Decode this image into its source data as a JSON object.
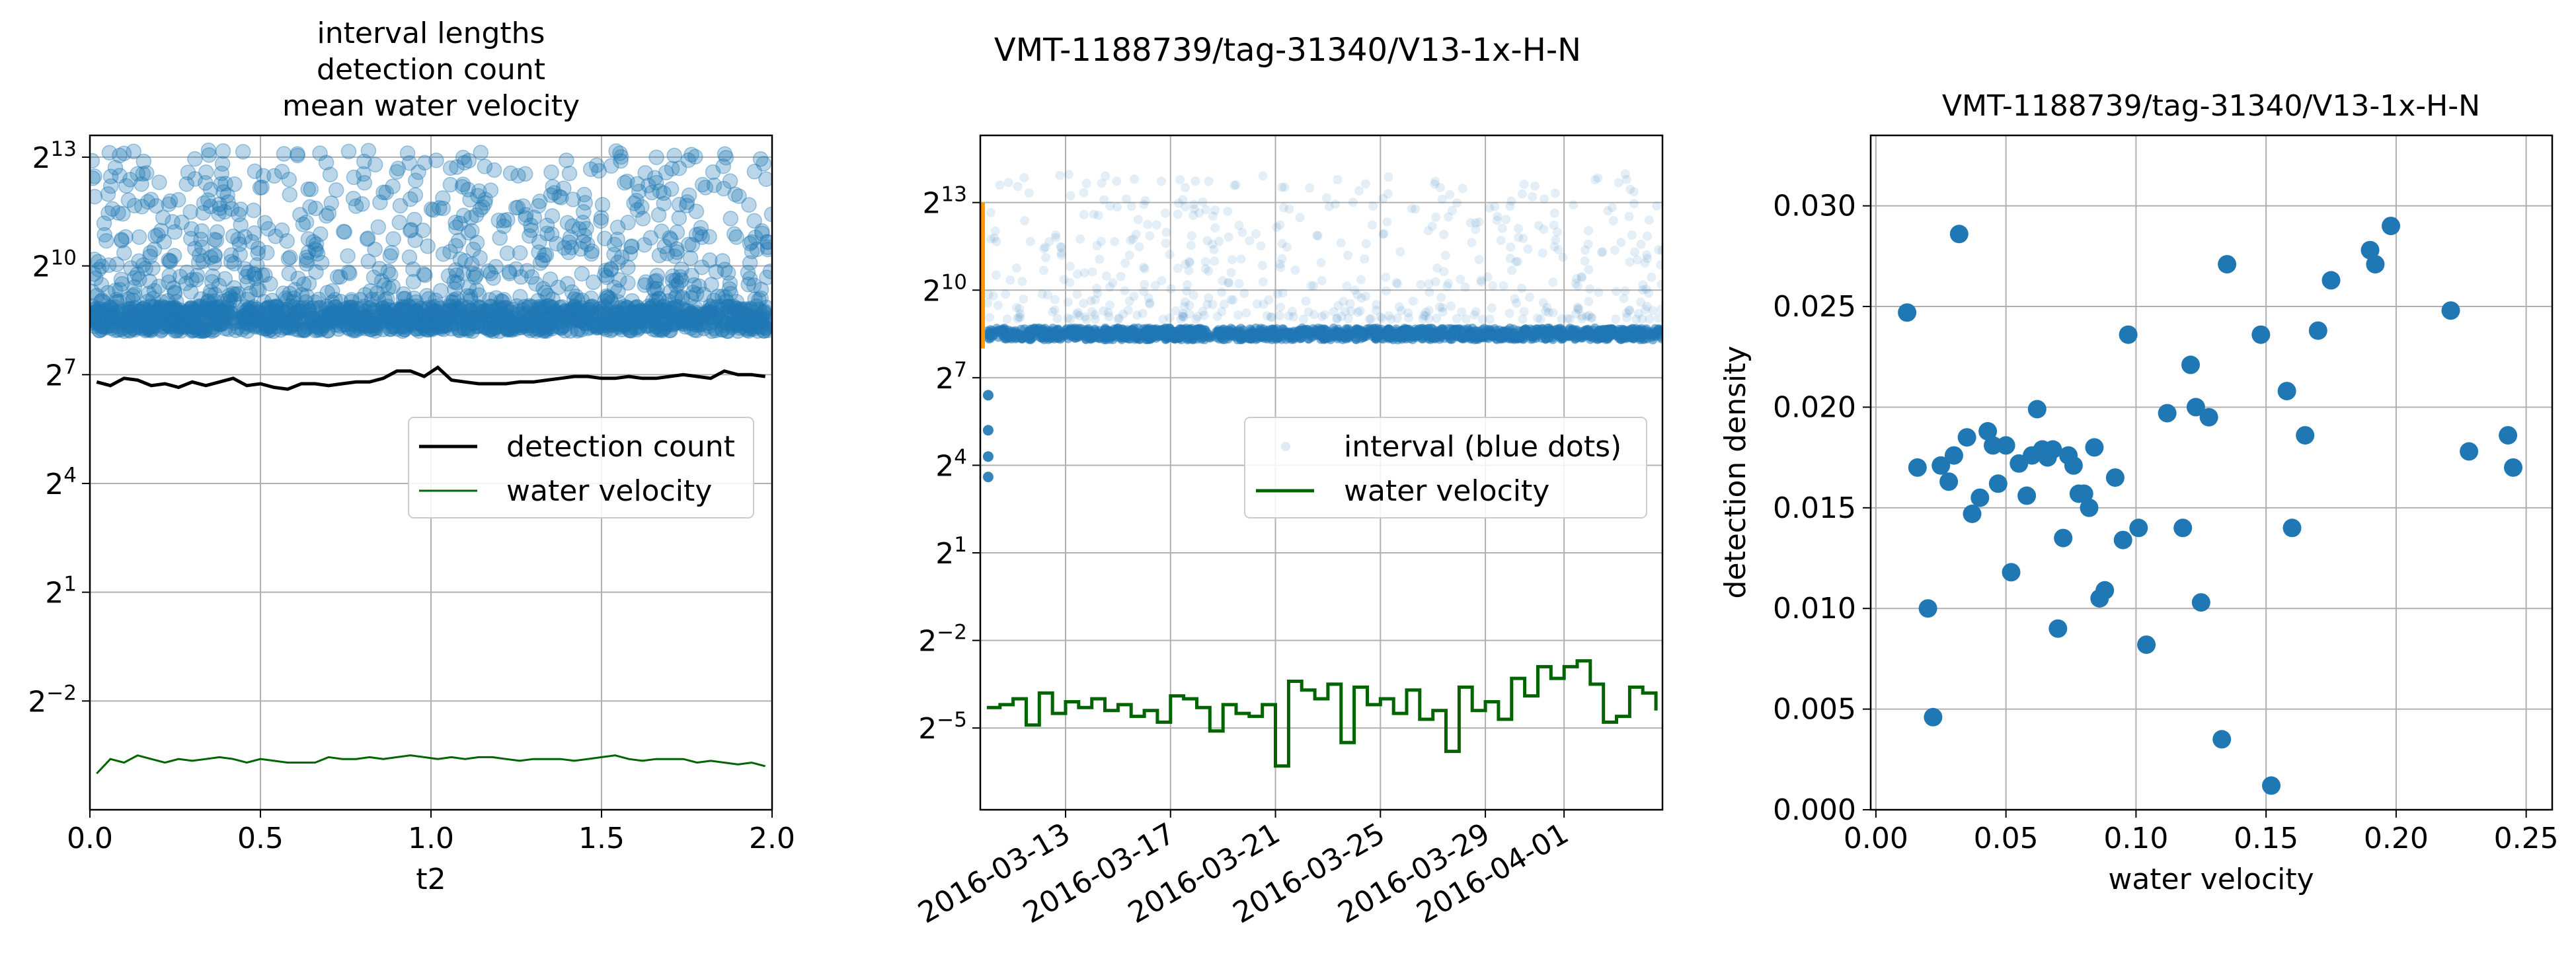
{
  "figure": {
    "suptitle": "VMT-1188739/tag-31340/V13-1x-H-N"
  },
  "chart_data": [
    {
      "type": "line",
      "title_lines": [
        "interval lengths",
        "detection count",
        "mean water velocity"
      ],
      "xlabel": "t2",
      "ylabel": "",
      "x_ticks": [
        "0.0",
        "0.5",
        "1.0",
        "1.5",
        "2.0"
      ],
      "x_tick_values": [
        0,
        0.5,
        1.0,
        1.5,
        2.0
      ],
      "y_scale": "log2",
      "y_ticks": [
        {
          "base": "2",
          "exp": "−2",
          "value": -2
        },
        {
          "base": "2",
          "exp": "1",
          "value": 1
        },
        {
          "base": "2",
          "exp": "4",
          "value": 4
        },
        {
          "base": "2",
          "exp": "7",
          "value": 7
        },
        {
          "base": "2",
          "exp": "10",
          "value": 10
        },
        {
          "base": "2",
          "exp": "13",
          "value": 13
        }
      ],
      "xlim": [
        0,
        2
      ],
      "ylim_log2": [
        -5.0,
        13.6
      ],
      "grid": true,
      "legend": {
        "position": "center-right",
        "entries": [
          "detection count",
          "water velocity"
        ]
      },
      "series": [
        {
          "name": "detection count",
          "color": "#000000",
          "x": [
            0.02,
            0.06,
            0.1,
            0.14,
            0.18,
            0.22,
            0.26,
            0.3,
            0.34,
            0.38,
            0.42,
            0.46,
            0.5,
            0.54,
            0.58,
            0.62,
            0.66,
            0.7,
            0.74,
            0.78,
            0.82,
            0.86,
            0.9,
            0.94,
            0.98,
            1.02,
            1.06,
            1.1,
            1.14,
            1.18,
            1.22,
            1.26,
            1.3,
            1.34,
            1.38,
            1.42,
            1.46,
            1.5,
            1.54,
            1.58,
            1.62,
            1.66,
            1.7,
            1.74,
            1.78,
            1.82,
            1.86,
            1.9,
            1.94,
            1.98
          ],
          "log2_y": [
            6.8,
            6.7,
            6.9,
            6.85,
            6.7,
            6.75,
            6.65,
            6.8,
            6.7,
            6.8,
            6.9,
            6.7,
            6.75,
            6.65,
            6.6,
            6.75,
            6.75,
            6.7,
            6.75,
            6.8,
            6.8,
            6.9,
            7.1,
            7.1,
            6.95,
            7.2,
            6.85,
            6.8,
            6.75,
            6.75,
            6.75,
            6.8,
            6.8,
            6.85,
            6.9,
            6.95,
            6.95,
            6.9,
            6.9,
            6.95,
            6.9,
            6.9,
            6.95,
            7.0,
            6.95,
            6.9,
            7.1,
            7.0,
            7.0,
            6.95
          ]
        },
        {
          "name": "water velocity",
          "color": "#006400",
          "x": [
            0.02,
            0.06,
            0.1,
            0.14,
            0.18,
            0.22,
            0.26,
            0.3,
            0.34,
            0.38,
            0.42,
            0.46,
            0.5,
            0.54,
            0.58,
            0.62,
            0.66,
            0.7,
            0.74,
            0.78,
            0.82,
            0.86,
            0.9,
            0.94,
            0.98,
            1.02,
            1.06,
            1.1,
            1.14,
            1.18,
            1.22,
            1.26,
            1.3,
            1.34,
            1.38,
            1.42,
            1.46,
            1.5,
            1.54,
            1.58,
            1.62,
            1.66,
            1.7,
            1.74,
            1.78,
            1.82,
            1.86,
            1.9,
            1.94,
            1.98
          ],
          "log2_y": [
            -4.0,
            -3.6,
            -3.7,
            -3.5,
            -3.6,
            -3.7,
            -3.6,
            -3.65,
            -3.6,
            -3.55,
            -3.6,
            -3.7,
            -3.6,
            -3.65,
            -3.7,
            -3.7,
            -3.7,
            -3.55,
            -3.6,
            -3.6,
            -3.55,
            -3.6,
            -3.55,
            -3.5,
            -3.55,
            -3.6,
            -3.55,
            -3.6,
            -3.55,
            -3.55,
            -3.6,
            -3.65,
            -3.6,
            -3.6,
            -3.6,
            -3.65,
            -3.6,
            -3.55,
            -3.5,
            -3.6,
            -3.65,
            -3.6,
            -3.6,
            -3.6,
            -3.7,
            -3.65,
            -3.7,
            -3.75,
            -3.7,
            -3.8
          ]
        }
      ],
      "scatter_note": "interval length points (blue, translucent)",
      "scatter_color": "#1f77b4",
      "scatter_bands_log2": [
        {
          "from": 8.2,
          "to": 8.9,
          "density": "dense"
        },
        {
          "from": 9.0,
          "to": 13.2,
          "density": "sparse"
        }
      ]
    },
    {
      "type": "line",
      "title": "",
      "xlabel": "",
      "ylabel": "",
      "x_ticks": [
        "2016-03-13",
        "2016-03-17",
        "2016-03-21",
        "2016-03-25",
        "2016-03-29",
        "2016-04-01"
      ],
      "x_tick_values": [
        "2016-03-13",
        "2016-03-17",
        "2016-03-21",
        "2016-03-25",
        "2016-03-29",
        "2016-04-01"
      ],
      "xlim": [
        "2016-03-09 18:00",
        "2016-04-04 18:00"
      ],
      "y_scale": "log2",
      "y_ticks": [
        {
          "base": "2",
          "exp": "−5",
          "value": -5
        },
        {
          "base": "2",
          "exp": "−2",
          "value": -2
        },
        {
          "base": "2",
          "exp": "1",
          "value": 1
        },
        {
          "base": "2",
          "exp": "4",
          "value": 4
        },
        {
          "base": "2",
          "exp": "7",
          "value": 7
        },
        {
          "base": "2",
          "exp": "10",
          "value": 10
        },
        {
          "base": "2",
          "exp": "13",
          "value": 13
        }
      ],
      "ylim_log2": [
        -7.8,
        15.3
      ],
      "grid": true,
      "legend": {
        "position": "center-right",
        "entries": [
          "interval (blue dots)",
          "water velocity"
        ]
      },
      "marker_segment": {
        "color": "#ff9900",
        "log2_from": 8.0,
        "log2_to": 13.0
      },
      "series": [
        {
          "name": "interval (blue dots)",
          "color": "#1f77b4",
          "dense_band_log2": [
            8.3,
            8.7
          ],
          "sparse_range_log2": [
            9.0,
            14.0
          ]
        },
        {
          "name": "water velocity",
          "color": "#006400",
          "x": [
            "2016-03-10",
            "2016-03-10 12:00",
            "2016-03-11",
            "2016-03-11 12:00",
            "2016-03-12",
            "2016-03-12 12:00",
            "2016-03-13",
            "2016-03-13 12:00",
            "2016-03-14",
            "2016-03-14 12:00",
            "2016-03-15",
            "2016-03-15 12:00",
            "2016-03-16",
            "2016-03-16 12:00",
            "2016-03-17",
            "2016-03-17 12:00",
            "2016-03-18",
            "2016-03-18 12:00",
            "2016-03-19",
            "2016-03-19 12:00",
            "2016-03-20",
            "2016-03-20 12:00",
            "2016-03-21",
            "2016-03-21 12:00",
            "2016-03-22",
            "2016-03-22 12:00",
            "2016-03-23",
            "2016-03-23 12:00",
            "2016-03-24",
            "2016-03-24 12:00",
            "2016-03-25",
            "2016-03-25 12:00",
            "2016-03-26",
            "2016-03-26 12:00",
            "2016-03-27",
            "2016-03-27 12:00",
            "2016-03-28",
            "2016-03-28 12:00",
            "2016-03-29",
            "2016-03-29 12:00",
            "2016-03-30",
            "2016-03-30 12:00",
            "2016-03-31",
            "2016-03-31 12:00",
            "2016-04-01",
            "2016-04-01 12:00",
            "2016-04-02",
            "2016-04-02 12:00",
            "2016-04-03",
            "2016-04-03 12:00",
            "2016-04-04",
            "2016-04-04 12:00"
          ],
          "log2_y": [
            -4.3,
            -4.2,
            -4.0,
            -4.9,
            -3.8,
            -4.5,
            -4.1,
            -4.3,
            -4.0,
            -4.4,
            -4.2,
            -4.6,
            -4.4,
            -4.8,
            -3.9,
            -4.0,
            -4.3,
            -5.1,
            -4.2,
            -4.5,
            -4.6,
            -4.2,
            -6.3,
            -3.4,
            -3.7,
            -4.0,
            -3.5,
            -5.5,
            -3.6,
            -4.2,
            -4.0,
            -4.5,
            -3.7,
            -4.7,
            -4.4,
            -5.8,
            -3.6,
            -4.4,
            -4.1,
            -4.7,
            -3.3,
            -3.9,
            -2.9,
            -3.3,
            -2.9,
            -2.7,
            -3.5,
            -4.8,
            -4.6,
            -3.6,
            -3.8,
            -4.4
          ]
        }
      ]
    },
    {
      "type": "scatter",
      "title": "VMT-1188739/tag-31340/V13-1x-H-N",
      "xlabel": "water velocity",
      "ylabel": "detection density",
      "x_ticks": [
        "0.00",
        "0.05",
        "0.10",
        "0.15",
        "0.20",
        "0.25"
      ],
      "x_tick_values": [
        0,
        0.05,
        0.1,
        0.15,
        0.2,
        0.25
      ],
      "y_ticks": [
        "0.000",
        "0.005",
        "0.010",
        "0.015",
        "0.020",
        "0.025",
        "0.030"
      ],
      "y_tick_values": [
        0,
        0.005,
        0.01,
        0.015,
        0.02,
        0.025,
        0.03
      ],
      "xlim": [
        -0.002,
        0.26
      ],
      "ylim": [
        0,
        0.0335
      ],
      "grid": true,
      "color": "#1f77b4",
      "points": [
        [
          0.012,
          0.0247
        ],
        [
          0.016,
          0.017
        ],
        [
          0.02,
          0.01
        ],
        [
          0.022,
          0.0046
        ],
        [
          0.025,
          0.0171
        ],
        [
          0.028,
          0.0163
        ],
        [
          0.03,
          0.0176
        ],
        [
          0.032,
          0.0286
        ],
        [
          0.035,
          0.0185
        ],
        [
          0.037,
          0.0147
        ],
        [
          0.04,
          0.0155
        ],
        [
          0.043,
          0.0188
        ],
        [
          0.045,
          0.0181
        ],
        [
          0.047,
          0.0162
        ],
        [
          0.05,
          0.0181
        ],
        [
          0.052,
          0.0118
        ],
        [
          0.055,
          0.0172
        ],
        [
          0.058,
          0.0156
        ],
        [
          0.06,
          0.0176
        ],
        [
          0.062,
          0.0199
        ],
        [
          0.064,
          0.0179
        ],
        [
          0.066,
          0.0175
        ],
        [
          0.068,
          0.0179
        ],
        [
          0.07,
          0.009
        ],
        [
          0.072,
          0.0135
        ],
        [
          0.074,
          0.0176
        ],
        [
          0.076,
          0.0171
        ],
        [
          0.078,
          0.0157
        ],
        [
          0.08,
          0.0157
        ],
        [
          0.082,
          0.015
        ],
        [
          0.084,
          0.018
        ],
        [
          0.086,
          0.0105
        ],
        [
          0.088,
          0.0109
        ],
        [
          0.092,
          0.0165
        ],
        [
          0.095,
          0.0134
        ],
        [
          0.097,
          0.0236
        ],
        [
          0.101,
          0.014
        ],
        [
          0.104,
          0.0082
        ],
        [
          0.112,
          0.0197
        ],
        [
          0.118,
          0.014
        ],
        [
          0.121,
          0.0221
        ],
        [
          0.123,
          0.02
        ],
        [
          0.125,
          0.0103
        ],
        [
          0.128,
          0.0195
        ],
        [
          0.133,
          0.0035
        ],
        [
          0.135,
          0.0271
        ],
        [
          0.148,
          0.0236
        ],
        [
          0.152,
          0.0012
        ],
        [
          0.158,
          0.0208
        ],
        [
          0.16,
          0.014
        ],
        [
          0.165,
          0.0186
        ],
        [
          0.17,
          0.0238
        ],
        [
          0.175,
          0.0263
        ],
        [
          0.19,
          0.0278
        ],
        [
          0.192,
          0.0271
        ],
        [
          0.198,
          0.029
        ],
        [
          0.221,
          0.0248
        ],
        [
          0.228,
          0.0178
        ],
        [
          0.243,
          0.0186
        ],
        [
          0.245,
          0.017
        ]
      ]
    }
  ]
}
